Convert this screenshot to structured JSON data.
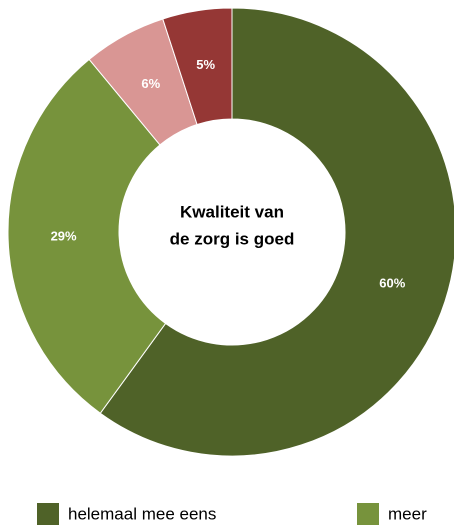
{
  "chart_data": {
    "type": "donut",
    "title": [
      "Kwaliteit van",
      "de zorg is goed"
    ],
    "categories": [
      "helemaal mee eens",
      "meer",
      null,
      null
    ],
    "values": [
      60,
      29,
      6,
      5
    ],
    "value_labels": [
      "60%",
      "29%",
      "6%",
      "5%"
    ],
    "colors": [
      "#4f6228",
      "#77933c",
      "#d99694",
      "#953735"
    ],
    "legend": "bottom"
  }
}
